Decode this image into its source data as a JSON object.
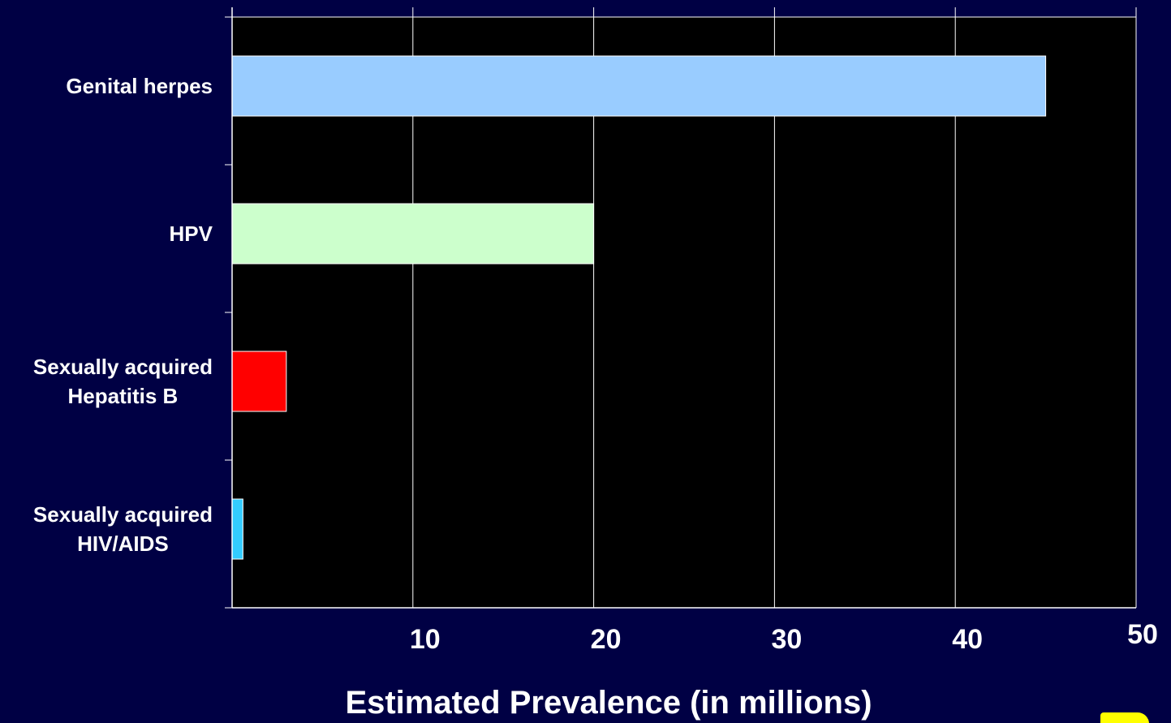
{
  "chart_data": {
    "type": "bar",
    "orientation": "horizontal",
    "categories": [
      "Genital herpes",
      "HPV",
      "Sexually acquired\nHepatitis B",
      "Sexually acquired\nHIV/AIDS"
    ],
    "values": [
      45,
      20,
      3,
      0.6
    ],
    "colors": [
      "#99ccff",
      "#ccffcc",
      "#ff0000",
      "#33ccff"
    ],
    "title": "",
    "xlabel": "Estimated Prevalence (in millions)",
    "ylabel": "",
    "xlim": [
      0,
      50
    ],
    "xticks": [
      10,
      20,
      30,
      40,
      50
    ],
    "grid": "vertical",
    "plot_background": "#000000",
    "page_background": "#000044"
  },
  "labels": {
    "x_axis_title": "Estimated Prevalence (in millions)"
  },
  "logo": {
    "color": "#ffff00"
  }
}
